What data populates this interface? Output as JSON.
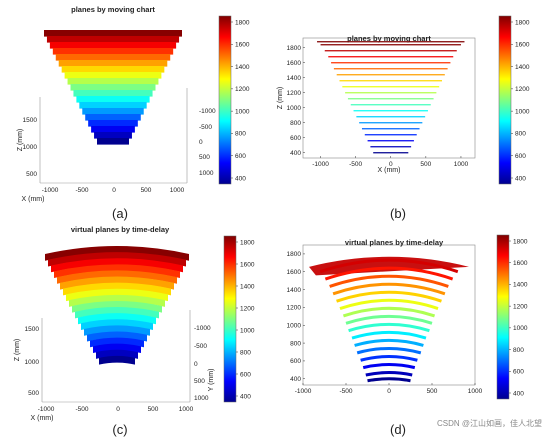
{
  "colormap": [
    "#00008f",
    "#0000ff",
    "#0080ff",
    "#00ffff",
    "#80ff80",
    "#ffff00",
    "#ff8000",
    "#ff0000",
    "#800000"
  ],
  "chart_data": [
    {
      "id": "a",
      "type": "surface3d",
      "title": "planes by moving chart",
      "caption": "(a)",
      "xlabel": "X (mm)",
      "zlabel": "Z (mm)",
      "xticks": [
        "-1000",
        "-500",
        "0",
        "500",
        "1000"
      ],
      "zticks": [
        "1500",
        "1000",
        "500"
      ],
      "yticks": [
        "-1000",
        "-500",
        "0",
        "500",
        "1000"
      ],
      "colorbar_ticks": [
        "1800",
        "1600",
        "1400",
        "1200",
        "1000",
        "800",
        "600",
        "400"
      ],
      "planes_z": [
        400,
        480,
        560,
        640,
        720,
        800,
        880,
        960,
        1040,
        1120,
        1200,
        1280,
        1360,
        1440,
        1520,
        1600,
        1680,
        1760,
        1840
      ]
    },
    {
      "id": "b",
      "type": "line",
      "title": "planes by moving chart",
      "caption": "(b)",
      "xlabel": "X (mm)",
      "ylabel": "Z (mm)",
      "xlim": [
        -1250,
        1200
      ],
      "ylim": [
        330,
        1930
      ],
      "xticks": [
        -1000,
        -500,
        0,
        500,
        1000
      ],
      "yticks": [
        400,
        600,
        800,
        1000,
        1200,
        1400,
        1600,
        1800
      ],
      "colorbar_ticks": [
        "1800",
        "1600",
        "1400",
        "1200",
        "1000",
        "800",
        "600",
        "400"
      ],
      "series": [
        {
          "z": 400,
          "xmin": -250,
          "xmax": 250
        },
        {
          "z": 480,
          "xmin": -290,
          "xmax": 290
        },
        {
          "z": 560,
          "xmin": -330,
          "xmax": 330
        },
        {
          "z": 640,
          "xmin": -370,
          "xmax": 370
        },
        {
          "z": 720,
          "xmin": -410,
          "xmax": 410
        },
        {
          "z": 800,
          "xmin": -450,
          "xmax": 450
        },
        {
          "z": 880,
          "xmin": -490,
          "xmax": 490
        },
        {
          "z": 960,
          "xmin": -530,
          "xmax": 530
        },
        {
          "z": 1040,
          "xmin": -570,
          "xmax": 570
        },
        {
          "z": 1120,
          "xmin": -610,
          "xmax": 610
        },
        {
          "z": 1200,
          "xmin": -650,
          "xmax": 650
        },
        {
          "z": 1280,
          "xmin": -690,
          "xmax": 690
        },
        {
          "z": 1360,
          "xmin": -730,
          "xmax": 730
        },
        {
          "z": 1440,
          "xmin": -770,
          "xmax": 770
        },
        {
          "z": 1520,
          "xmin": -810,
          "xmax": 810
        },
        {
          "z": 1600,
          "xmin": -850,
          "xmax": 850
        },
        {
          "z": 1680,
          "xmin": -890,
          "xmax": 890
        },
        {
          "z": 1760,
          "xmin": -940,
          "xmax": 940
        },
        {
          "z": 1840,
          "xmin": -1000,
          "xmax": 1000
        },
        {
          "z": 1880,
          "xmin": -1050,
          "xmax": 1050
        }
      ]
    },
    {
      "id": "c",
      "type": "surface3d",
      "title": "virtual planes by time-delay",
      "caption": "(c)",
      "xlabel": "X (mm)",
      "zlabel": "Z (mm)",
      "ylabel": "Y (mm)",
      "xticks": [
        "-1000",
        "-500",
        "0",
        "500",
        "1000"
      ],
      "zticks": [
        "1500",
        "1000",
        "500"
      ],
      "yticks": [
        "-1000",
        "-500",
        "0",
        "500",
        "1000"
      ],
      "colorbar_ticks": [
        "1800",
        "1600",
        "1400",
        "1200",
        "1000",
        "800",
        "600",
        "400"
      ],
      "planes_z": [
        400,
        480,
        560,
        640,
        720,
        800,
        880,
        960,
        1040,
        1120,
        1200,
        1280,
        1360,
        1440,
        1520,
        1600,
        1680,
        1760,
        1840
      ]
    },
    {
      "id": "d",
      "type": "line",
      "title": "virtual planes by time-delay",
      "caption": "(d)",
      "xlim": [
        -1000,
        1000
      ],
      "ylim": [
        330,
        1900
      ],
      "xticks": [
        -1000,
        -500,
        0,
        500,
        1000
      ],
      "yticks": [
        400,
        600,
        800,
        1000,
        1200,
        1400,
        1600,
        1800
      ],
      "colorbar_ticks": [
        "1800",
        "1600",
        "1400",
        "1200",
        "1000",
        "800",
        "600",
        "400"
      ],
      "series": [
        {
          "z": 400,
          "xmin": -250,
          "xmax": 250
        },
        {
          "z": 470,
          "xmin": -270,
          "xmax": 270
        },
        {
          "z": 560,
          "xmin": -300,
          "xmax": 300
        },
        {
          "z": 650,
          "xmin": -330,
          "xmax": 330
        },
        {
          "z": 740,
          "xmin": -370,
          "xmax": 370
        },
        {
          "z": 830,
          "xmin": -400,
          "xmax": 400
        },
        {
          "z": 920,
          "xmin": -430,
          "xmax": 430
        },
        {
          "z": 1010,
          "xmin": -470,
          "xmax": 470
        },
        {
          "z": 1100,
          "xmin": -500,
          "xmax": 500
        },
        {
          "z": 1190,
          "xmin": -530,
          "xmax": 530
        },
        {
          "z": 1280,
          "xmin": -570,
          "xmax": 570
        },
        {
          "z": 1370,
          "xmin": -610,
          "xmax": 610
        },
        {
          "z": 1460,
          "xmin": -650,
          "xmax": 650
        },
        {
          "z": 1550,
          "xmin": -690,
          "xmax": 690
        },
        {
          "z": 1640,
          "xmin": -740,
          "xmax": 740
        },
        {
          "z": 1730,
          "xmin": -800,
          "xmax": 800
        }
      ]
    }
  ],
  "watermark": "CSDN @江山如画，佳人北望"
}
